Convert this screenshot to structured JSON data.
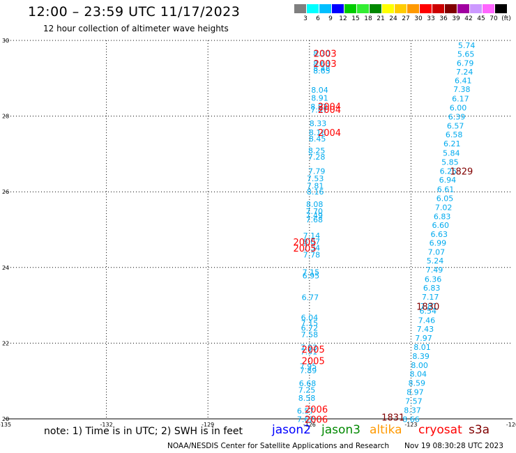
{
  "header": {
    "title": "12:00 – 23:59 UTC 11/17/2023",
    "subtitle": "12 hour collection of altimeter wave heights"
  },
  "colorbar": {
    "colors": [
      "#7f7f7f",
      "#00ffff",
      "#00bfff",
      "#0000ff",
      "#00cc00",
      "#33ee33",
      "#008800",
      "#ffff00",
      "#ffcc00",
      "#ff9900",
      "#ff0000",
      "#cc0000",
      "#800000",
      "#a000a0",
      "#cc99ff",
      "#ff66ff",
      "#000000"
    ],
    "labels": [
      "3",
      "6",
      "9",
      "12",
      "15",
      "18",
      "21",
      "24",
      "27",
      "30",
      "33",
      "36",
      "39",
      "42",
      "45",
      "70",
      "(ft)"
    ]
  },
  "map": {
    "x_ticks": [
      "-135",
      "-132",
      "-129",
      "-126",
      "-123",
      "-120"
    ],
    "y_ticks": [
      "30",
      "28",
      "26",
      "24",
      "22",
      "20"
    ]
  },
  "chart_data": {
    "type": "scatter",
    "xlim": [
      -135,
      -120
    ],
    "ylim": [
      20,
      30
    ],
    "grid": true,
    "grid_lon": [
      -132,
      -129,
      -126,
      -123
    ],
    "grid_lat": [
      28,
      26,
      24,
      22
    ],
    "series": [
      {
        "name": "jason2",
        "color": "#00aaee",
        "points": [
          {
            "lon": -125.89,
            "lat": 29.66,
            "v": "8.30"
          },
          {
            "lon": -125.89,
            "lat": 29.39,
            "v": "8.63"
          },
          {
            "lon": -125.89,
            "lat": 29.26,
            "v": "8.48"
          },
          {
            "lon": -125.89,
            "lat": 29.2,
            "v": "8.65"
          },
          {
            "lon": -125.95,
            "lat": 28.69,
            "v": "8.04"
          },
          {
            "lon": -125.95,
            "lat": 28.48,
            "v": "8.91"
          },
          {
            "lon": -125.97,
            "lat": 28.25,
            "v": "8.82"
          },
          {
            "lon": -125.97,
            "lat": 28.17,
            "v": "7.87"
          },
          {
            "lon": -126.0,
            "lat": 27.81,
            "v": "8.33"
          },
          {
            "lon": -126.02,
            "lat": 27.57,
            "v": "8.16"
          },
          {
            "lon": -126.02,
            "lat": 27.4,
            "v": "8.45"
          },
          {
            "lon": -126.04,
            "lat": 27.09,
            "v": "8.25"
          },
          {
            "lon": -126.04,
            "lat": 26.92,
            "v": "7.28"
          },
          {
            "lon": -126.04,
            "lat": 26.55,
            "v": "7.79"
          },
          {
            "lon": -126.08,
            "lat": 26.35,
            "v": "7.53"
          },
          {
            "lon": -126.08,
            "lat": 26.16,
            "v": "7.81"
          },
          {
            "lon": -126.08,
            "lat": 26.0,
            "v": "8.16"
          },
          {
            "lon": -126.1,
            "lat": 25.67,
            "v": "8.08"
          },
          {
            "lon": -126.11,
            "lat": 25.49,
            "v": "7.70"
          },
          {
            "lon": -126.11,
            "lat": 25.38,
            "v": "7.49"
          },
          {
            "lon": -126.11,
            "lat": 25.27,
            "v": "7.68"
          },
          {
            "lon": -126.19,
            "lat": 24.84,
            "v": "7.14"
          },
          {
            "lon": -126.19,
            "lat": 24.69,
            "v": "8.07"
          },
          {
            "lon": -126.19,
            "lat": 24.52,
            "v": "7.34"
          },
          {
            "lon": -126.19,
            "lat": 24.34,
            "v": "7.78"
          },
          {
            "lon": -126.21,
            "lat": 23.88,
            "v": "7.15"
          },
          {
            "lon": -126.21,
            "lat": 23.78,
            "v": "6.95"
          },
          {
            "lon": -126.23,
            "lat": 23.21,
            "v": "6.77"
          },
          {
            "lon": -126.25,
            "lat": 22.68,
            "v": "6.04"
          },
          {
            "lon": -126.25,
            "lat": 22.53,
            "v": "7.15"
          },
          {
            "lon": -126.25,
            "lat": 22.4,
            "v": "6.72"
          },
          {
            "lon": -126.25,
            "lat": 22.23,
            "v": "7.58"
          },
          {
            "lon": -126.27,
            "lat": 21.89,
            "v": "7.93"
          },
          {
            "lon": -126.27,
            "lat": 21.78,
            "v": "7.51"
          },
          {
            "lon": -126.29,
            "lat": 21.39,
            "v": "7.95"
          },
          {
            "lon": -126.29,
            "lat": 21.28,
            "v": "7.89"
          },
          {
            "lon": -126.31,
            "lat": 20.94,
            "v": "6.68"
          },
          {
            "lon": -126.33,
            "lat": 20.76,
            "v": "7.25"
          },
          {
            "lon": -126.33,
            "lat": 20.55,
            "v": "8.58"
          },
          {
            "lon": -126.37,
            "lat": 20.21,
            "v": "6.57"
          },
          {
            "lon": -126.37,
            "lat": 19.99,
            "v": "7.62"
          },
          {
            "lon": -121.61,
            "lat": 29.87,
            "v": "5.74"
          },
          {
            "lon": -121.63,
            "lat": 29.64,
            "v": "5.65"
          },
          {
            "lon": -121.65,
            "lat": 29.4,
            "v": "6.79"
          },
          {
            "lon": -121.67,
            "lat": 29.17,
            "v": "7.24"
          },
          {
            "lon": -121.71,
            "lat": 28.94,
            "v": "6.41"
          },
          {
            "lon": -121.75,
            "lat": 28.71,
            "v": "7.38"
          },
          {
            "lon": -121.79,
            "lat": 28.46,
            "v": "6.17"
          },
          {
            "lon": -121.86,
            "lat": 28.22,
            "v": "6.00"
          },
          {
            "lon": -121.9,
            "lat": 27.98,
            "v": "6.39"
          },
          {
            "lon": -121.94,
            "lat": 27.74,
            "v": "6.57"
          },
          {
            "lon": -121.98,
            "lat": 27.51,
            "v": "6.58"
          },
          {
            "lon": -122.04,
            "lat": 27.27,
            "v": "6.21"
          },
          {
            "lon": -122.06,
            "lat": 27.03,
            "v": "5.84"
          },
          {
            "lon": -122.1,
            "lat": 26.79,
            "v": "5.85"
          },
          {
            "lon": -122.15,
            "lat": 26.55,
            "v": "6.25"
          },
          {
            "lon": -122.17,
            "lat": 26.32,
            "v": "6.94"
          },
          {
            "lon": -122.23,
            "lat": 26.07,
            "v": "6.61"
          },
          {
            "lon": -122.25,
            "lat": 25.83,
            "v": "6.05"
          },
          {
            "lon": -122.29,
            "lat": 25.59,
            "v": "7.02"
          },
          {
            "lon": -122.33,
            "lat": 25.35,
            "v": "6.83"
          },
          {
            "lon": -122.38,
            "lat": 25.12,
            "v": "6.60"
          },
          {
            "lon": -122.42,
            "lat": 24.88,
            "v": "6.63"
          },
          {
            "lon": -122.46,
            "lat": 24.65,
            "v": "6.99"
          },
          {
            "lon": -122.5,
            "lat": 24.41,
            "v": "7.07"
          },
          {
            "lon": -122.54,
            "lat": 24.18,
            "v": "5.24"
          },
          {
            "lon": -122.56,
            "lat": 23.94,
            "v": "7.49"
          },
          {
            "lon": -122.6,
            "lat": 23.69,
            "v": "6.36"
          },
          {
            "lon": -122.64,
            "lat": 23.46,
            "v": "6.83"
          },
          {
            "lon": -122.68,
            "lat": 23.22,
            "v": "7.17"
          },
          {
            "lon": -122.73,
            "lat": 22.98,
            "v": "7.81"
          },
          {
            "lon": -122.75,
            "lat": 22.85,
            "v": "6.54"
          },
          {
            "lon": -122.79,
            "lat": 22.61,
            "v": "7.46"
          },
          {
            "lon": -122.83,
            "lat": 22.38,
            "v": "7.43"
          },
          {
            "lon": -122.88,
            "lat": 22.14,
            "v": "7.97"
          },
          {
            "lon": -122.92,
            "lat": 21.9,
            "v": "8.01"
          },
          {
            "lon": -122.96,
            "lat": 21.66,
            "v": "8.39"
          },
          {
            "lon": -123.0,
            "lat": 21.42,
            "v": "8.00"
          },
          {
            "lon": -123.04,
            "lat": 21.19,
            "v": "8.04"
          },
          {
            "lon": -123.08,
            "lat": 20.95,
            "v": "8.59"
          },
          {
            "lon": -123.13,
            "lat": 20.71,
            "v": "8.97"
          },
          {
            "lon": -123.17,
            "lat": 20.47,
            "v": "7.57"
          },
          {
            "lon": -123.21,
            "lat": 20.23,
            "v": "8.37"
          },
          {
            "lon": -123.25,
            "lat": 19.99,
            "v": "8.66"
          }
        ]
      }
    ],
    "time_labels": [
      {
        "lon": -125.88,
        "lat": 29.66,
        "text": "2003",
        "color": "#ff0000"
      },
      {
        "lon": -125.88,
        "lat": 29.39,
        "text": "2003",
        "color": "#ff0000"
      },
      {
        "lon": -125.75,
        "lat": 28.26,
        "text": "2004",
        "color": "#ff0000"
      },
      {
        "lon": -125.75,
        "lat": 28.18,
        "text": "2004",
        "color": "#ff0000"
      },
      {
        "lon": -125.75,
        "lat": 27.57,
        "text": "2004",
        "color": "#ff0000"
      },
      {
        "lon": -126.48,
        "lat": 24.68,
        "text": "2005",
        "color": "#ff0000"
      },
      {
        "lon": -126.48,
        "lat": 24.51,
        "text": "2005",
        "color": "#ff0000"
      },
      {
        "lon": -126.23,
        "lat": 21.84,
        "text": "2005",
        "color": "#ff0000"
      },
      {
        "lon": -126.23,
        "lat": 21.54,
        "text": "2005",
        "color": "#ff0000"
      },
      {
        "lon": -126.14,
        "lat": 20.26,
        "text": "2006",
        "color": "#ff0000"
      },
      {
        "lon": -126.14,
        "lat": 19.99,
        "text": "2006",
        "color": "#ff0000"
      },
      {
        "lon": -121.85,
        "lat": 26.55,
        "text": "1829",
        "color": "#800000"
      },
      {
        "lon": -122.84,
        "lat": 22.97,
        "text": "1830",
        "color": "#800000"
      },
      {
        "lon": -123.87,
        "lat": 20.05,
        "text": "1831",
        "color": "#800000"
      }
    ]
  },
  "footer": {
    "note": "note: 1) Time is in UTC; 2) SWH is in feet",
    "satellites": [
      {
        "name": "jason2",
        "color": "#0000ff"
      },
      {
        "name": "jason3",
        "color": "#008800"
      },
      {
        "name": "altika",
        "color": "#ff9900"
      },
      {
        "name": "cryosat",
        "color": "#ff0000"
      },
      {
        "name": "s3a",
        "color": "#800000"
      }
    ],
    "credit": "NOAA/NESDIS Center for Satellite Applications and Research",
    "date": "Nov 19 08:30:28 UTC 2023"
  }
}
